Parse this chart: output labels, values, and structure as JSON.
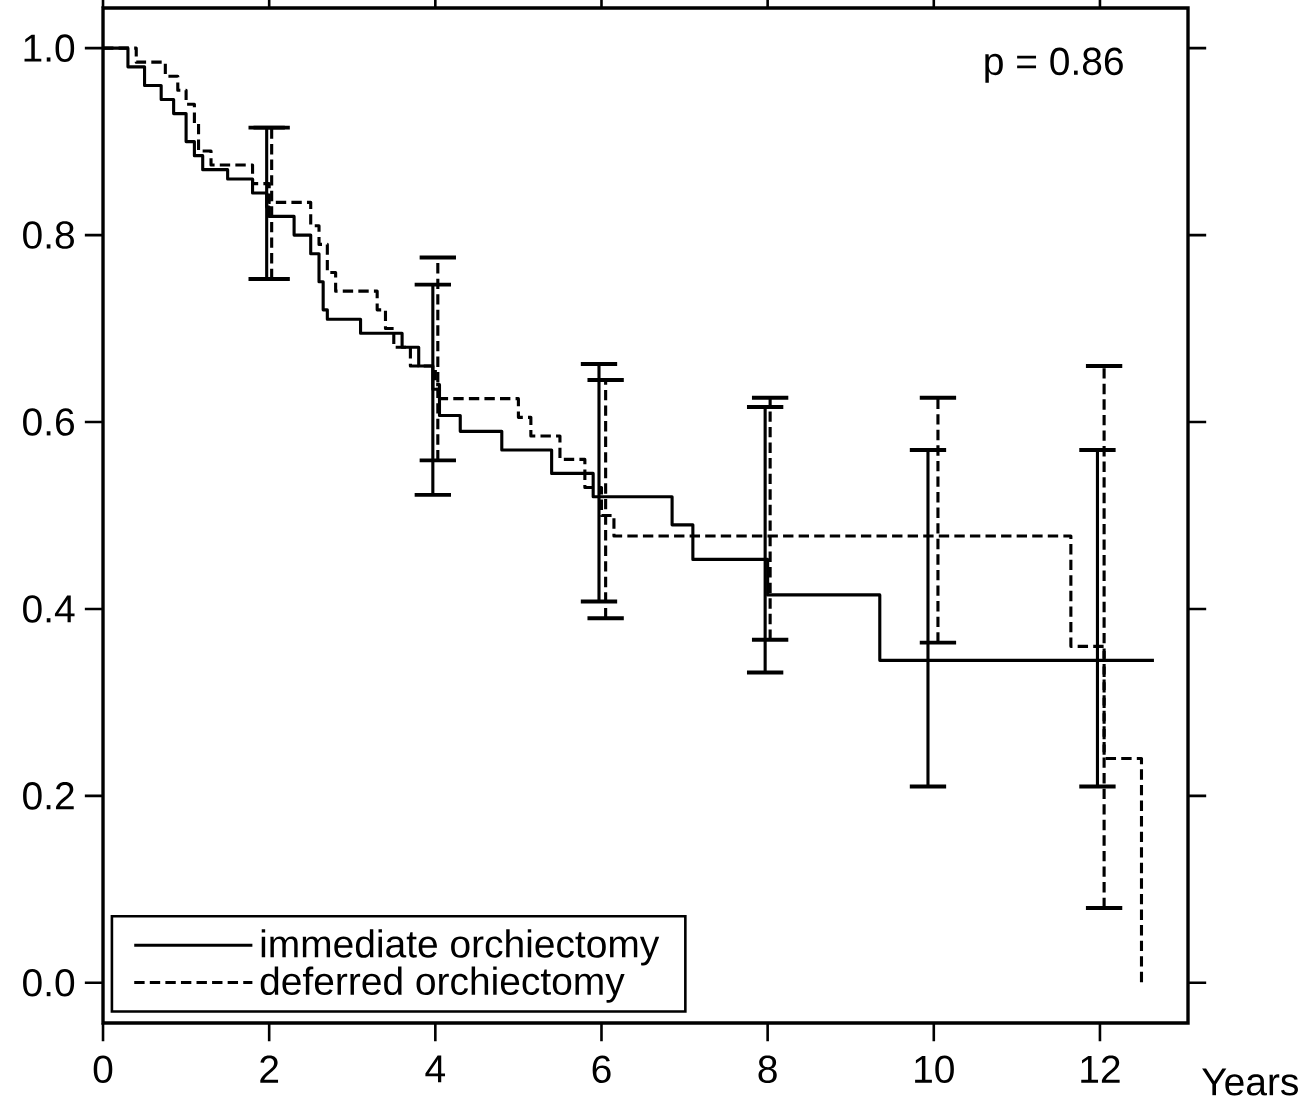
{
  "chart_data": {
    "type": "step",
    "xlabel": "Years",
    "annotations": [
      "p = 0.86"
    ],
    "xlim": [
      0,
      13.06
    ],
    "ylim": [
      -0.043,
      1.043
    ],
    "xticks": [
      0,
      2,
      4,
      6,
      8,
      10,
      12
    ],
    "yticks": [
      {
        "value": 0,
        "label": "0.0"
      },
      {
        "value": 0.2,
        "label": "0.2"
      },
      {
        "value": 0.4,
        "label": "0.4"
      },
      {
        "value": 0.6,
        "label": "0.6"
      },
      {
        "value": 0.8,
        "label": "0.8"
      },
      {
        "value": 1,
        "label": "1.0"
      }
    ],
    "legend": "bottom left",
    "series": [
      {
        "name": "immediate orchiectomy",
        "color": "#000000",
        "line_style": "solid",
        "x": [
          0,
          0.3,
          0.5,
          0.7,
          0.85,
          1.0,
          1.1,
          1.2,
          1.5,
          1.8,
          1.97,
          2.0,
          2.3,
          2.5,
          2.6,
          2.65,
          2.7,
          3.1,
          3.6,
          3.8,
          3.97,
          4.05,
          4.3,
          4.8,
          5.4,
          5.9,
          5.97,
          6.85,
          7.1,
          7.97,
          8.0,
          9.35,
          9.93,
          11.97,
          12.65
        ],
        "values": [
          1.0,
          0.98,
          0.96,
          0.945,
          0.93,
          0.9,
          0.885,
          0.87,
          0.86,
          0.845,
          0.83,
          0.82,
          0.8,
          0.78,
          0.75,
          0.72,
          0.71,
          0.695,
          0.68,
          0.66,
          0.635,
          0.607,
          0.59,
          0.57,
          0.545,
          0.52,
          0.52,
          0.49,
          0.453,
          0.453,
          0.415,
          0.345,
          0.345,
          0.345,
          0.345
        ],
        "errors": [
          null,
          null,
          null,
          null,
          null,
          null,
          null,
          null,
          null,
          null,
          [
            0.753,
            0.915
          ],
          null,
          null,
          null,
          null,
          null,
          null,
          null,
          null,
          null,
          [
            0.522,
            0.747
          ],
          null,
          null,
          null,
          null,
          null,
          [
            0.408,
            0.662
          ],
          null,
          null,
          [
            0.332,
            0.616
          ],
          null,
          null,
          [
            0.21,
            0.57
          ],
          [
            0.21,
            0.57
          ],
          null
        ]
      },
      {
        "name": "deferred orchiectomy",
        "color": "#000000",
        "line_style": "dashed",
        "x": [
          0,
          0.4,
          0.75,
          0.9,
          1.0,
          1.1,
          1.15,
          1.3,
          1.8,
          2.0,
          2.03,
          2.5,
          2.6,
          2.7,
          2.8,
          3.3,
          3.4,
          3.5,
          3.7,
          4.0,
          4.03,
          4.05,
          5.0,
          5.15,
          5.5,
          5.8,
          6.0,
          6.05,
          6.15,
          8.03,
          10.05,
          11.65,
          12.05,
          12.5,
          12.5
        ],
        "values": [
          1.0,
          0.985,
          0.97,
          0.955,
          0.94,
          0.92,
          0.89,
          0.875,
          0.855,
          0.835,
          0.835,
          0.81,
          0.79,
          0.76,
          0.74,
          0.72,
          0.7,
          0.68,
          0.66,
          0.64,
          0.64,
          0.625,
          0.605,
          0.585,
          0.56,
          0.53,
          0.5,
          0.5,
          0.478,
          0.478,
          0.478,
          0.36,
          0.24,
          0.24,
          0.0
        ],
        "errors": [
          null,
          null,
          null,
          null,
          null,
          null,
          null,
          null,
          null,
          null,
          [
            0.753,
            0.915
          ],
          null,
          null,
          null,
          null,
          null,
          null,
          null,
          null,
          null,
          [
            0.559,
            0.776
          ],
          null,
          null,
          null,
          null,
          null,
          null,
          [
            0.39,
            0.645
          ],
          null,
          [
            0.367,
            0.626
          ],
          [
            0.364,
            0.626
          ],
          null,
          [
            0.08,
            0.66
          ],
          null,
          null
        ]
      }
    ]
  }
}
